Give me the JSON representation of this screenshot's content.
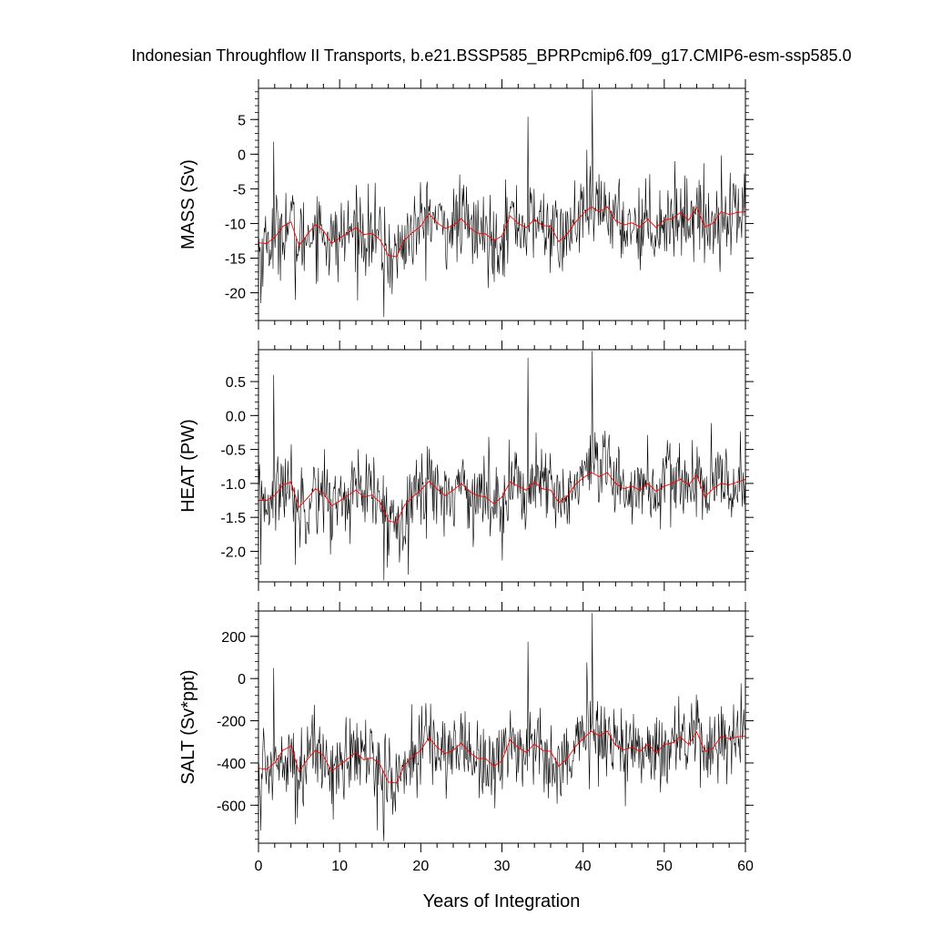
{
  "figure": {
    "title": "Indonesian Throughflow II Transports, b.e21.BSSP585_BPRPcmip6.f09_g17.CMIP6-esm-ssp585.0",
    "xlabel": "Years of Integration"
  },
  "colors": {
    "raw_series": "#000000",
    "smoothed_series": "#ff0000",
    "axes": "#000000"
  },
  "chart_data": [
    {
      "type": "line",
      "ylabel": "MASS (Sv)",
      "xlim": [
        0,
        60
      ],
      "ylim": [
        -24,
        9.5
      ],
      "xticks": [
        0,
        10,
        20,
        30,
        40,
        50,
        60
      ],
      "yticks": [
        -20,
        -15,
        -10,
        -5,
        0,
        5
      ],
      "ytick_labels": [
        "-20",
        "-15",
        "-10",
        "-5",
        "0",
        "5"
      ],
      "grid": false,
      "raw_stats": {
        "mean": -10.6,
        "std": 3.1,
        "spikes": [
          [
            0.3,
            -21.5
          ],
          [
            1.9,
            1.8
          ],
          [
            4.5,
            -21.0
          ],
          [
            15.5,
            -23.5
          ],
          [
            33.2,
            5.4
          ],
          [
            41.1,
            9.3
          ]
        ]
      },
      "smoothed": {
        "x": [
          0,
          1,
          2,
          3,
          4,
          5,
          6,
          7,
          8,
          9,
          10,
          11,
          12,
          13,
          14,
          15,
          16,
          17,
          18,
          19,
          20,
          21,
          22,
          23,
          24,
          25,
          26,
          27,
          28,
          29,
          30,
          31,
          32,
          33,
          34,
          35,
          36,
          37,
          38,
          39,
          40,
          41,
          42,
          43,
          44,
          45,
          46,
          47,
          48,
          49,
          50,
          51,
          52,
          53,
          54,
          55,
          56,
          57,
          58,
          59,
          60
        ],
        "y": [
          -12.8,
          -12.9,
          -12.0,
          -10.4,
          -9.8,
          -13.2,
          -11.6,
          -10.2,
          -11.0,
          -12.9,
          -12.1,
          -11.4,
          -10.6,
          -11.6,
          -11.4,
          -12.4,
          -14.6,
          -14.8,
          -12.4,
          -11.3,
          -10.4,
          -8.6,
          -9.9,
          -10.7,
          -10.3,
          -9.3,
          -10.6,
          -11.4,
          -11.5,
          -12.5,
          -11.8,
          -8.9,
          -10.0,
          -10.6,
          -9.4,
          -10.3,
          -10.4,
          -12.6,
          -11.6,
          -9.9,
          -8.6,
          -7.6,
          -8.3,
          -7.6,
          -9.6,
          -10.2,
          -9.9,
          -10.5,
          -9.4,
          -10.6,
          -9.5,
          -9.3,
          -8.4,
          -9.5,
          -7.7,
          -10.5,
          -10.0,
          -8.3,
          -8.7,
          -8.4,
          -8.3
        ]
      }
    },
    {
      "type": "line",
      "ylabel": "HEAT (PW)",
      "xlim": [
        0,
        60
      ],
      "ylim": [
        -2.45,
        0.97
      ],
      "xticks": [
        0,
        10,
        20,
        30,
        40,
        50,
        60
      ],
      "yticks": [
        -2.0,
        -1.5,
        -1.0,
        -0.5,
        0.0,
        0.5
      ],
      "ytick_labels": [
        "-2.0",
        "-1.5",
        "-1.0",
        "-0.5",
        "0.0",
        "0.5"
      ],
      "grid": false,
      "raw_stats": {
        "mean": -1.15,
        "std": 0.32,
        "spikes": [
          [
            0.3,
            -2.2
          ],
          [
            1.9,
            0.6
          ],
          [
            4.5,
            -2.2
          ],
          [
            15.5,
            -2.43
          ],
          [
            33.2,
            0.85
          ],
          [
            41.1,
            0.95
          ]
        ]
      },
      "smoothed": {
        "x": [
          0,
          1,
          2,
          3,
          4,
          5,
          6,
          7,
          8,
          9,
          10,
          11,
          12,
          13,
          14,
          15,
          16,
          17,
          18,
          19,
          20,
          21,
          22,
          23,
          24,
          25,
          26,
          27,
          28,
          29,
          30,
          31,
          32,
          33,
          34,
          35,
          36,
          37,
          38,
          39,
          40,
          41,
          42,
          43,
          44,
          45,
          46,
          47,
          48,
          49,
          50,
          51,
          52,
          53,
          54,
          55,
          56,
          57,
          58,
          59,
          60
        ],
        "y": [
          -1.25,
          -1.25,
          -1.18,
          -1.02,
          -0.98,
          -1.35,
          -1.22,
          -1.08,
          -1.14,
          -1.33,
          -1.26,
          -1.18,
          -1.1,
          -1.2,
          -1.17,
          -1.28,
          -1.55,
          -1.58,
          -1.32,
          -1.2,
          -1.1,
          -0.97,
          -1.08,
          -1.18,
          -1.1,
          -1.0,
          -1.12,
          -1.18,
          -1.2,
          -1.3,
          -1.2,
          -0.98,
          -1.04,
          -1.1,
          -0.98,
          -1.08,
          -1.1,
          -1.28,
          -1.2,
          -1.02,
          -0.92,
          -0.84,
          -0.9,
          -0.84,
          -1.0,
          -1.08,
          -1.04,
          -1.1,
          -1.0,
          -1.12,
          -1.04,
          -1.0,
          -0.94,
          -1.02,
          -0.88,
          -1.2,
          -1.08,
          -1.0,
          -1.02,
          -0.98,
          -0.94
        ]
      }
    },
    {
      "type": "line",
      "ylabel": "SALT (Sv*ppt)",
      "xlim": [
        0,
        60
      ],
      "ylim": [
        -780,
        320
      ],
      "xticks": [
        0,
        10,
        20,
        30,
        40,
        50,
        60
      ],
      "yticks": [
        -600,
        -400,
        -200,
        0,
        200
      ],
      "ytick_labels": [
        "-600",
        "-400",
        "-200",
        "0",
        "200"
      ],
      "grid": false,
      "raw_stats": {
        "mean": -370,
        "std": 105,
        "spikes": [
          [
            0.3,
            -720
          ],
          [
            1.9,
            50
          ],
          [
            4.5,
            -690
          ],
          [
            15.5,
            -770
          ],
          [
            33.2,
            175
          ],
          [
            41.1,
            310
          ]
        ]
      },
      "smoothed": {
        "x": [
          0,
          1,
          2,
          3,
          4,
          5,
          6,
          7,
          8,
          9,
          10,
          11,
          12,
          13,
          14,
          15,
          16,
          17,
          18,
          19,
          20,
          21,
          22,
          23,
          24,
          25,
          26,
          27,
          28,
          29,
          30,
          31,
          32,
          33,
          34,
          35,
          36,
          37,
          38,
          39,
          40,
          41,
          42,
          43,
          44,
          45,
          46,
          47,
          48,
          49,
          50,
          51,
          52,
          53,
          54,
          55,
          56,
          57,
          58,
          59,
          60
        ],
        "y": [
          -425,
          -430,
          -400,
          -340,
          -320,
          -440,
          -385,
          -340,
          -365,
          -440,
          -410,
          -380,
          -350,
          -385,
          -375,
          -410,
          -490,
          -495,
          -410,
          -370,
          -340,
          -280,
          -325,
          -355,
          -340,
          -305,
          -350,
          -378,
          -380,
          -415,
          -390,
          -290,
          -328,
          -350,
          -310,
          -340,
          -345,
          -415,
          -382,
          -325,
          -285,
          -250,
          -272,
          -250,
          -316,
          -338,
          -326,
          -345,
          -310,
          -352,
          -312,
          -305,
          -276,
          -313,
          -253,
          -345,
          -330,
          -273,
          -285,
          -276,
          -272
        ]
      }
    }
  ]
}
